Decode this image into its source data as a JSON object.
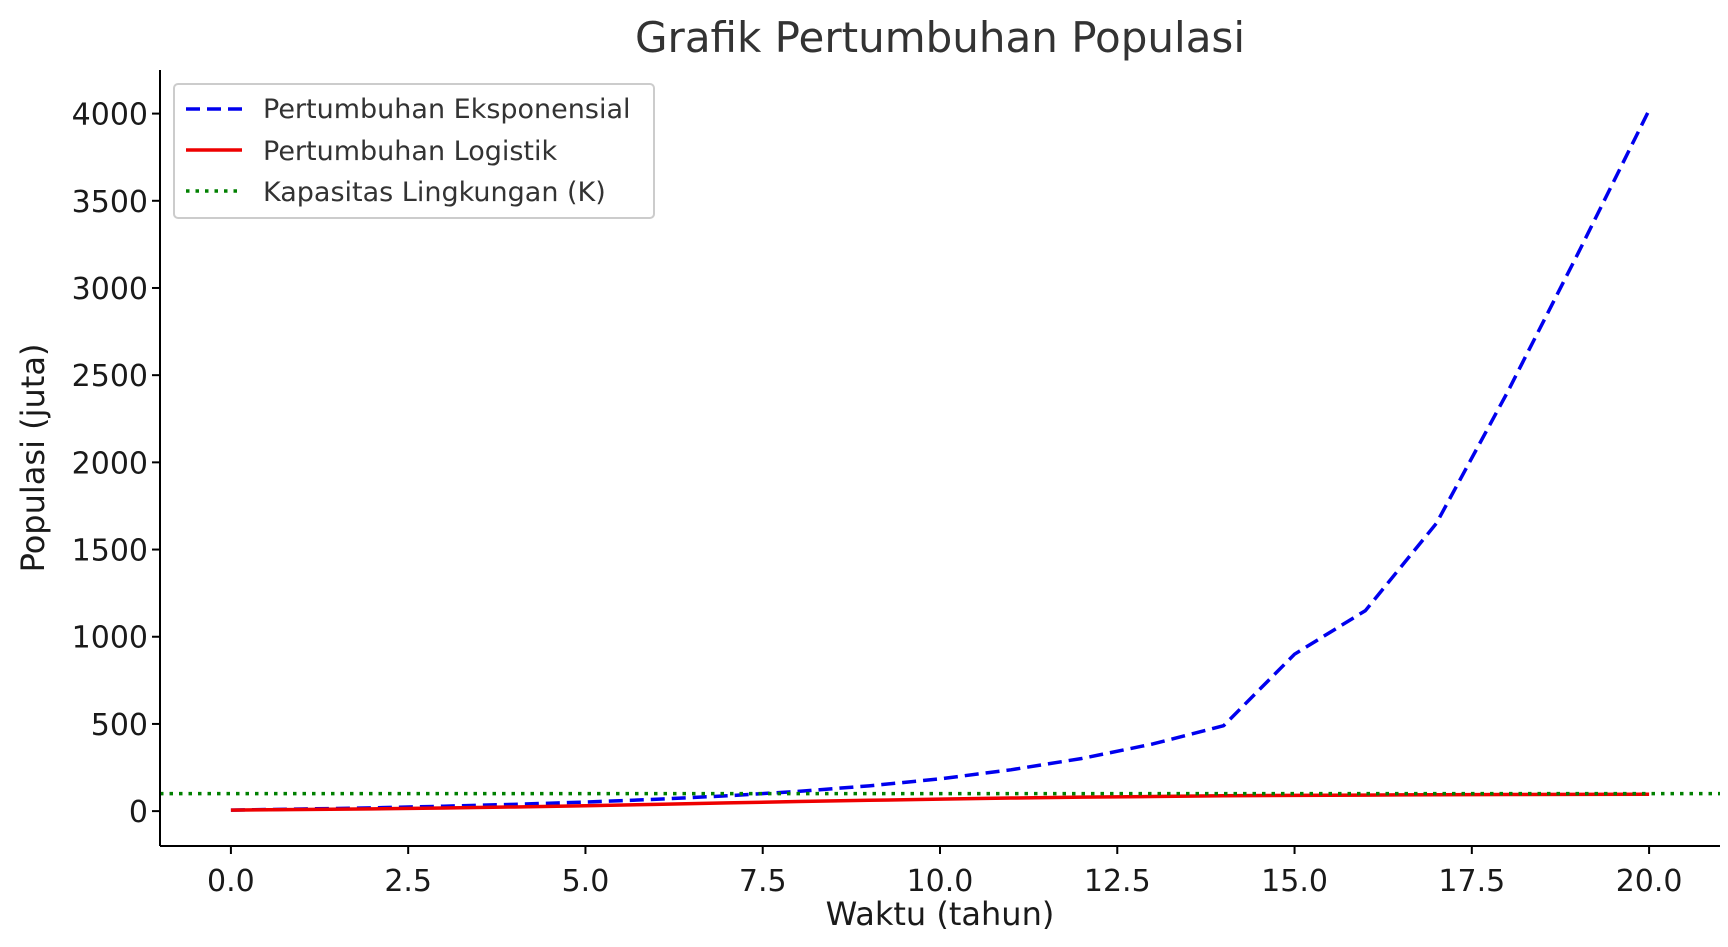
{
  "chart_data": {
    "type": "line",
    "title": "Grafik Pertumbuhan Populasi",
    "xlabel": "Waktu (tahun)",
    "ylabel": "Populasi (juta)",
    "xlim": [
      -1,
      21
    ],
    "ylim": [
      -200,
      4250
    ],
    "xticks": [
      0,
      2.5,
      5,
      7.5,
      10,
      12.5,
      15,
      17.5,
      20
    ],
    "xtick_labels": [
      "0.0",
      "2.5",
      "5.0",
      "7.5",
      "10.0",
      "12.5",
      "15.0",
      "17.5",
      "20.0"
    ],
    "yticks": [
      0,
      500,
      1000,
      1500,
      2000,
      2500,
      3000,
      3500,
      4000
    ],
    "ytick_labels": [
      "0",
      "500",
      "1000",
      "1500",
      "2000",
      "2500",
      "3000",
      "3500",
      "4000"
    ],
    "grid": false,
    "legend_position": "top-left",
    "x": [
      0,
      1,
      2,
      3,
      4,
      5,
      6,
      7,
      8,
      9,
      10,
      11,
      12,
      13,
      14,
      15,
      16,
      17,
      18,
      19,
      20
    ],
    "series": [
      {
        "name": "Pertumbuhan Eksponensial",
        "style": "dashed",
        "color": "#0000ee",
        "values": [
          6,
          12,
          19,
          28,
          39,
          52,
          68,
          88,
          113,
          145,
          185,
          237,
          302,
          385,
          490,
          900,
          1150,
          1650,
          2400,
          3200,
          4020
        ]
      },
      {
        "name": "Pertumbuhan Logistik",
        "style": "solid",
        "color": "#ee0000",
        "values": [
          6,
          9,
          13,
          18,
          24,
          31,
          39,
          47,
          55,
          62,
          69,
          75,
          80,
          84,
          88,
          90,
          92,
          94,
          95,
          96,
          97
        ]
      },
      {
        "name": "Kapasitas Lingkungan (K)",
        "style": "dotted",
        "color": "#008000",
        "constant": 100
      }
    ]
  }
}
